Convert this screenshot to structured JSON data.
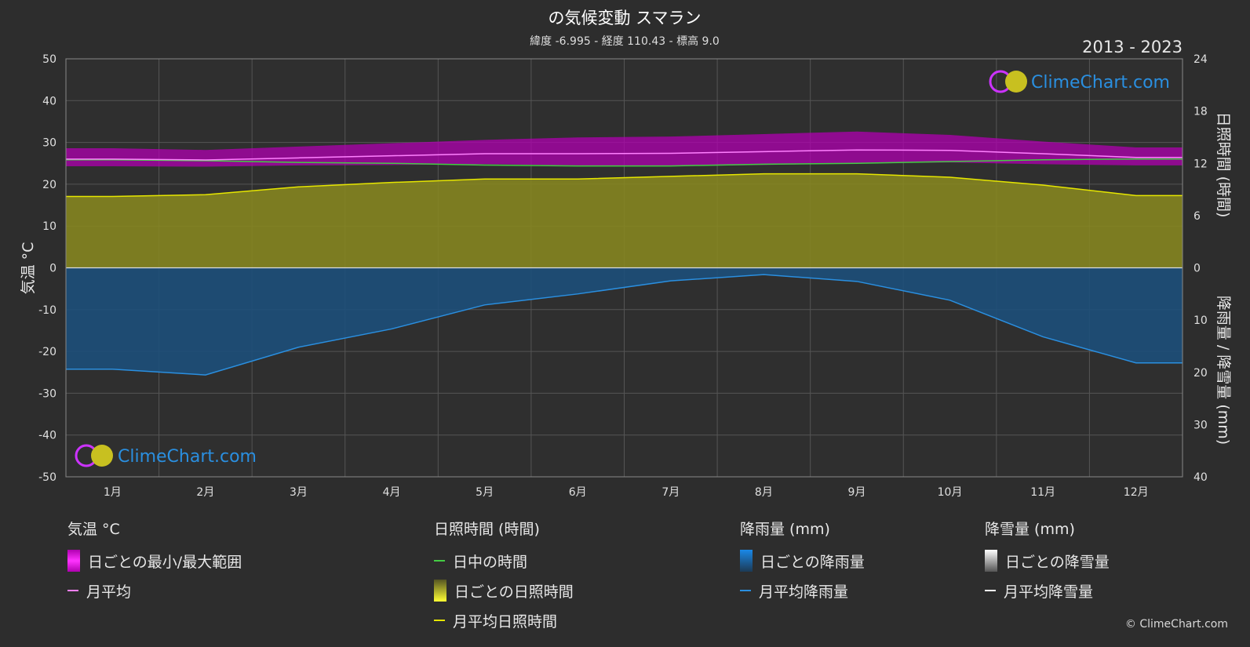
{
  "chart_data": {
    "type": "area",
    "title": "の気候変動 スマラン",
    "subtitle": "緯度 -6.995 - 経度 110.43 - 標高 9.0",
    "period": "2013 - 2023",
    "watermark": "ClimeChart.com",
    "categories": [
      "1月",
      "2月",
      "3月",
      "4月",
      "5月",
      "6月",
      "7月",
      "8月",
      "9月",
      "10月",
      "11月",
      "12月"
    ],
    "y_left": {
      "label": "気温 °C",
      "range": [
        -50,
        50
      ],
      "ticks": [
        "50",
        "40",
        "30",
        "20",
        "10",
        "0",
        "-10",
        "-20",
        "-30",
        "-40",
        "-50"
      ]
    },
    "y_right_top": {
      "label": "日照時間 (時間)",
      "range": [
        0,
        24
      ],
      "ticks": [
        "24",
        "18",
        "12",
        "6",
        "0"
      ]
    },
    "y_right_bottom": {
      "label": "降雨量 / 降雪量 (mm)",
      "range": [
        0,
        40
      ],
      "ticks": [
        "0",
        "10",
        "20",
        "30",
        "40"
      ]
    },
    "series": [
      {
        "name": "月平均",
        "unit": "°C",
        "color": "#ff80ff",
        "values": [
          26.0,
          25.8,
          26.3,
          26.8,
          27.3,
          27.3,
          27.4,
          27.8,
          28.2,
          28.1,
          27.3,
          26.4
        ]
      },
      {
        "name": "日中の時間",
        "unit": "時間",
        "color": "#44cc44",
        "values": [
          12.4,
          12.3,
          12.1,
          12.0,
          11.8,
          11.7,
          11.7,
          11.9,
          12.0,
          12.2,
          12.4,
          12.5
        ]
      },
      {
        "name": "月平均日照時間",
        "unit": "時間",
        "color": "#e6e600",
        "values": [
          8.2,
          8.4,
          9.3,
          9.8,
          10.2,
          10.2,
          10.5,
          10.8,
          10.8,
          10.4,
          9.5,
          8.3
        ]
      },
      {
        "name": "月平均降雨量",
        "unit": "mm",
        "color": "#2a8fe0",
        "values": [
          19.4,
          20.5,
          15.2,
          11.7,
          7.1,
          5.0,
          2.5,
          1.3,
          2.6,
          6.2,
          13.2,
          18.2
        ]
      },
      {
        "name": "日ごとの最小/最大範囲",
        "unit": "°C",
        "color": "#e000e0",
        "min": [
          24.3,
          24.2,
          24.5,
          24.6,
          24.8,
          24.5,
          24.3,
          24.6,
          25.0,
          25.2,
          24.8,
          24.5
        ],
        "max": [
          28.6,
          28.2,
          29.0,
          29.8,
          30.6,
          31.2,
          31.4,
          32.0,
          32.6,
          31.8,
          30.2,
          28.8
        ]
      }
    ]
  },
  "legend": {
    "temperature": {
      "head": "気温 °C",
      "range": "日ごとの最小/最大範囲",
      "avg": "月平均"
    },
    "sunshine": {
      "head": "日照時間 (時間)",
      "daylight": "日中の時間",
      "daily": "日ごとの日照時間",
      "avg": "月平均日照時間"
    },
    "rain": {
      "head": "降雨量 (mm)",
      "daily": "日ごとの降雨量",
      "avg": "月平均降雨量"
    },
    "snow": {
      "head": "降雪量 (mm)",
      "daily": "日ごとの降雪量",
      "avg": "月平均降雪量"
    }
  },
  "copyright": "© ClimeChart.com",
  "colors": {
    "background": "#2d2d2d",
    "grid": "#5a5a5a",
    "rain": "#1f6fb8",
    "sun": "#b8b800",
    "temp": "#e000e0"
  }
}
